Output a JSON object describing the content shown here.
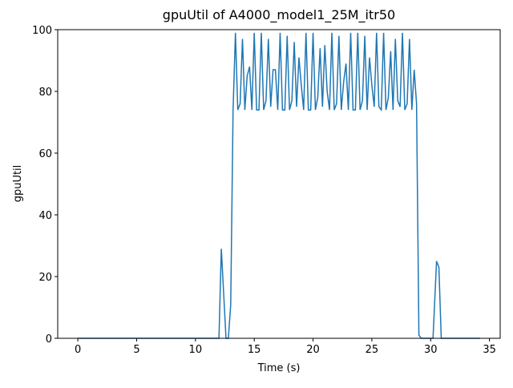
{
  "chart_data": {
    "type": "line",
    "title": "gpuUtil of A4000_model1_25M_itr50",
    "xlabel": "Time (s)",
    "ylabel": "gpuUtil",
    "x": [
      0,
      12.0,
      12.2,
      12.6,
      12.8,
      13.0,
      13.2,
      13.4,
      13.6,
      13.8,
      14.0,
      14.2,
      14.4,
      14.6,
      14.8,
      15.0,
      15.2,
      15.4,
      15.6,
      15.8,
      16.0,
      16.2,
      16.4,
      16.6,
      16.8,
      17.0,
      17.2,
      17.4,
      17.6,
      17.8,
      18.0,
      18.2,
      18.4,
      18.6,
      18.8,
      19.0,
      19.2,
      19.4,
      19.6,
      19.8,
      20.0,
      20.2,
      20.4,
      20.6,
      20.8,
      21.0,
      21.2,
      21.4,
      21.6,
      21.8,
      22.0,
      22.2,
      22.4,
      22.6,
      22.8,
      23.0,
      23.2,
      23.4,
      23.6,
      23.8,
      24.0,
      24.2,
      24.4,
      24.6,
      24.8,
      25.0,
      25.2,
      25.4,
      25.6,
      25.8,
      26.0,
      26.2,
      26.4,
      26.6,
      26.8,
      27.0,
      27.2,
      27.4,
      27.6,
      27.8,
      28.0,
      28.2,
      28.4,
      28.6,
      28.8,
      29.0,
      29.2,
      30.2,
      30.5,
      30.7,
      30.9,
      34.2
    ],
    "series": [
      {
        "name": "gpuUtil",
        "color": "#1f77b4",
        "values": [
          0,
          0,
          29,
          0,
          0,
          11,
          74,
          99,
          74,
          76,
          97,
          74,
          85,
          88,
          74,
          99,
          74,
          74,
          99,
          74,
          77,
          97,
          75,
          87,
          87,
          74,
          99,
          74,
          74,
          98,
          74,
          77,
          96,
          75,
          91,
          82,
          74,
          99,
          74,
          74,
          99,
          74,
          78,
          94,
          75,
          95,
          80,
          74,
          99,
          74,
          76,
          98,
          74,
          83,
          89,
          74,
          99,
          74,
          74,
          99,
          74,
          77,
          98,
          74,
          91,
          82,
          75,
          99,
          75,
          74,
          99,
          74,
          78,
          93,
          74,
          97,
          77,
          75,
          99,
          74,
          76,
          97,
          74,
          87,
          76,
          1,
          0,
          0,
          25,
          23,
          0,
          0
        ]
      }
    ],
    "xlim": [
      -1.71,
      35.91
    ],
    "ylim": [
      0,
      100
    ],
    "xticks": [
      0,
      5,
      10,
      15,
      20,
      25,
      30,
      35
    ],
    "yticks": [
      0,
      20,
      40,
      60,
      80,
      100
    ]
  }
}
